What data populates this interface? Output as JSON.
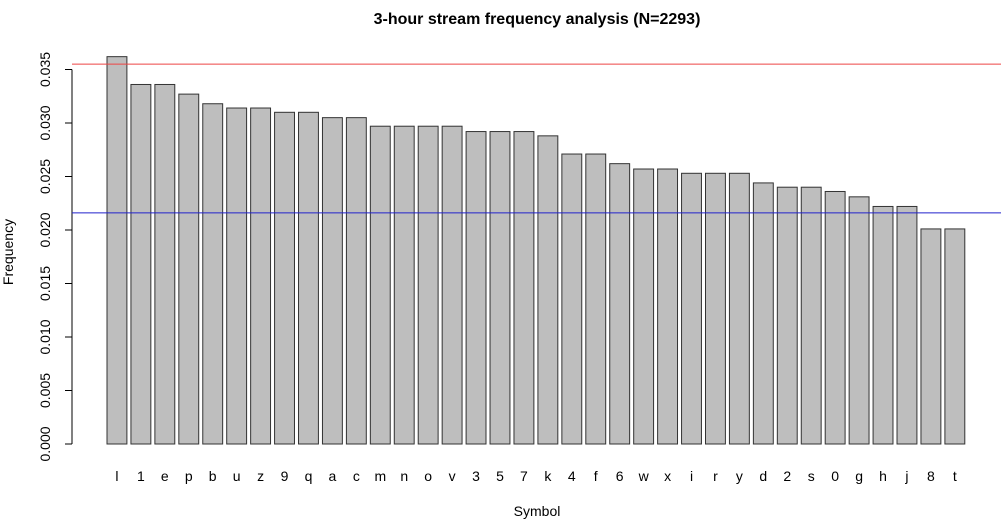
{
  "chart_data": {
    "type": "bar",
    "title": "3-hour stream frequency analysis (N=2293)",
    "xlabel": "Symbol",
    "ylabel": "Frequency",
    "ylim": [
      0,
      0.036
    ],
    "yticks": [
      0.0,
      0.005,
      0.01,
      0.015,
      0.02,
      0.025,
      0.03,
      0.035
    ],
    "ytick_labels": [
      "0.000",
      "0.005",
      "0.010",
      "0.015",
      "0.020",
      "0.025",
      "0.030",
      "0.035"
    ],
    "categories": [
      "l",
      "1",
      "e",
      "p",
      "b",
      "u",
      "z",
      "9",
      "q",
      "a",
      "c",
      "m",
      "n",
      "o",
      "v",
      "3",
      "5",
      "7",
      "k",
      "4",
      "f",
      "6",
      "w",
      "x",
      "i",
      "r",
      "y",
      "d",
      "2",
      "s",
      "0",
      "g",
      "h",
      "j",
      "8",
      "t"
    ],
    "values": [
      0.0362,
      0.0336,
      0.0336,
      0.0327,
      0.0318,
      0.0314,
      0.0314,
      0.031,
      0.031,
      0.0305,
      0.0305,
      0.0297,
      0.0297,
      0.0297,
      0.0297,
      0.0292,
      0.0292,
      0.0292,
      0.0288,
      0.0271,
      0.0271,
      0.0262,
      0.0257,
      0.0257,
      0.0253,
      0.0253,
      0.0253,
      0.0244,
      0.024,
      0.024,
      0.0236,
      0.0231,
      0.0222,
      0.0222,
      0.0201,
      0.0201
    ],
    "reference_lines": [
      {
        "value": 0.0355,
        "color": "#ee4444"
      },
      {
        "value": 0.0216,
        "color": "#2222cc"
      }
    ],
    "bar_fill": "#bebebe",
    "bar_stroke": "#333333",
    "grid": false,
    "legend": "none"
  }
}
